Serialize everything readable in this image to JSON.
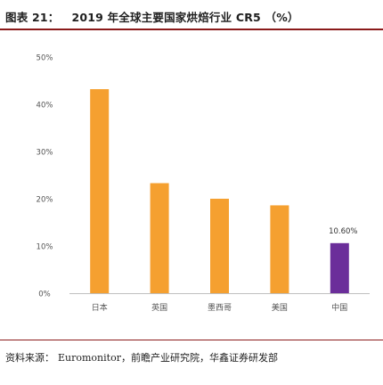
{
  "figure": {
    "label": "图表 21：",
    "title": "2019 年全球主要国家烘焙行业 CR5 （%）",
    "source_label": "资料来源：",
    "source_value": "Euromonitor，前瞻产业研究院，华鑫证券研发部"
  },
  "chart_data": {
    "type": "bar",
    "title": "2019 年全球主要国家烘焙行业 CR5 （%）",
    "xlabel": "",
    "ylabel": "",
    "categories": [
      "日本",
      "英国",
      "墨西哥",
      "美国",
      "中国"
    ],
    "values": [
      43.2,
      23.3,
      20.0,
      18.6,
      10.6
    ],
    "bar_colors": [
      "#F5A030",
      "#F5A030",
      "#F5A030",
      "#F5A030",
      "#6B2E9A"
    ],
    "ylim": [
      0,
      50
    ],
    "yticks": [
      0,
      10,
      20,
      30,
      40,
      50
    ],
    "ytick_labels": [
      "0%",
      "10%",
      "20%",
      "30%",
      "40%",
      "50%"
    ],
    "data_labels": [
      {
        "category": "中国",
        "text": "10.60%"
      }
    ],
    "grid": false,
    "legend": "none"
  }
}
